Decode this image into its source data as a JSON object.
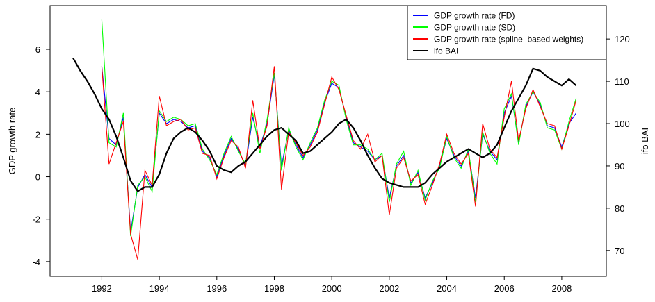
{
  "chart_data": {
    "type": "line",
    "ylabel": "GDP growth rate",
    "y2label": "ifo BAI",
    "x": [
      1991,
      1991.25,
      1991.5,
      1991.75,
      1992,
      1992.25,
      1992.5,
      1992.75,
      1993,
      1993.25,
      1993.5,
      1993.75,
      1994,
      1994.25,
      1994.5,
      1994.75,
      1995,
      1995.25,
      1995.5,
      1995.75,
      1996,
      1996.25,
      1996.5,
      1996.75,
      1997,
      1997.25,
      1997.5,
      1997.75,
      1998,
      1998.25,
      1998.5,
      1998.75,
      1999,
      1999.25,
      1999.5,
      1999.75,
      2000,
      2000.25,
      2000.5,
      2000.75,
      2001,
      2001.25,
      2001.5,
      2001.75,
      2002,
      2002.25,
      2002.5,
      2002.75,
      2003,
      2003.25,
      2003.5,
      2003.75,
      2004,
      2004.25,
      2004.5,
      2004.75,
      2005,
      2005.25,
      2005.5,
      2005.75,
      2006,
      2006.25,
      2006.5,
      2006.75,
      2007,
      2007.25,
      2007.5,
      2007.75,
      2008,
      2008.25,
      2008.5
    ],
    "xlim": [
      1990.2,
      2009.55
    ],
    "xticks": [
      1992,
      1994,
      1996,
      1998,
      2000,
      2002,
      2004,
      2006,
      2008
    ],
    "ylim": [
      -4.69,
      8.06
    ],
    "yticks": [
      -4,
      -2,
      0,
      2,
      4,
      6
    ],
    "y2lim": [
      63.9,
      127.9
    ],
    "y2ticks": [
      70,
      80,
      90,
      100,
      110,
      120
    ],
    "legend": "top-right",
    "series": [
      {
        "name": "GDP growth rate (FD)",
        "color": "#0000ff",
        "values": [
          null,
          null,
          null,
          null,
          5.2,
          1.8,
          1.5,
          2.8,
          -2.6,
          -0.5,
          0.1,
          -0.5,
          3.0,
          2.5,
          2.7,
          2.6,
          2.3,
          2.4,
          1.2,
          0.9,
          0.0,
          1.0,
          1.8,
          1.3,
          0.5,
          2.8,
          1.4,
          2.5,
          4.8,
          0.5,
          2.2,
          1.5,
          0.9,
          1.5,
          2.2,
          3.5,
          4.4,
          4.2,
          2.8,
          1.6,
          1.4,
          1.2,
          0.8,
          1.0,
          -1.0,
          0.5,
          1.0,
          -0.3,
          0.2,
          -1.0,
          -0.3,
          0.5,
          1.8,
          1.0,
          0.5,
          1.2,
          -1.0,
          2.0,
          1.2,
          0.8,
          3.0,
          3.8,
          1.6,
          3.3,
          4.0,
          3.4,
          2.4,
          2.3,
          1.4,
          2.5,
          3.0
        ]
      },
      {
        "name": "GDP growth rate (SD)",
        "color": "#00ff00",
        "values": [
          null,
          null,
          null,
          null,
          7.4,
          1.6,
          1.4,
          3.0,
          -2.8,
          -0.4,
          0.0,
          -0.7,
          3.1,
          2.6,
          2.8,
          2.7,
          2.4,
          2.5,
          1.3,
          0.8,
          0.1,
          1.1,
          1.9,
          1.2,
          0.6,
          3.0,
          1.1,
          2.7,
          4.9,
          0.3,
          2.3,
          1.4,
          0.8,
          1.6,
          2.3,
          3.6,
          4.5,
          4.3,
          2.7,
          1.5,
          1.5,
          1.3,
          0.8,
          1.1,
          -1.2,
          0.6,
          1.2,
          -0.4,
          0.3,
          -1.1,
          -0.2,
          0.4,
          1.9,
          0.9,
          0.4,
          1.3,
          -1.2,
          2.1,
          1.1,
          0.6,
          3.2,
          3.9,
          1.5,
          3.4,
          4.0,
          3.5,
          2.3,
          2.2,
          1.3,
          2.6,
          3.7
        ]
      },
      {
        "name": "GDP growth rate (spline–based weights)",
        "color": "#ff0000",
        "values": [
          null,
          null,
          null,
          null,
          5.2,
          0.6,
          1.6,
          2.6,
          -2.7,
          -3.9,
          0.3,
          -0.4,
          3.8,
          2.4,
          2.6,
          2.7,
          2.2,
          2.3,
          1.1,
          1.0,
          -0.1,
          0.9,
          1.7,
          1.4,
          0.4,
          3.6,
          1.3,
          2.4,
          5.2,
          -0.6,
          2.1,
          1.6,
          1.0,
          1.4,
          2.1,
          3.4,
          4.7,
          4.1,
          2.9,
          1.7,
          1.3,
          2.0,
          0.7,
          1.0,
          -1.8,
          0.4,
          0.9,
          -0.2,
          0.1,
          -1.3,
          -0.4,
          0.6,
          2.0,
          1.1,
          0.6,
          1.1,
          -1.4,
          2.5,
          1.3,
          0.9,
          2.8,
          4.5,
          1.7,
          3.2,
          4.1,
          3.3,
          2.5,
          2.4,
          1.3,
          2.4,
          3.6
        ]
      },
      {
        "name": "ifo BAI",
        "color": "#000000",
        "axis": "y2",
        "values": [
          115.5,
          112.5,
          110,
          107,
          103.5,
          101,
          97,
          92,
          86.5,
          84,
          85,
          85,
          88,
          93,
          96.5,
          98,
          99,
          98,
          96,
          93.5,
          90,
          89,
          88.5,
          90,
          91,
          93,
          95,
          97,
          98.5,
          99,
          97.5,
          96,
          93,
          93.5,
          95,
          96.5,
          98,
          100,
          101,
          99,
          96,
          92.5,
          89.5,
          87,
          86,
          85.5,
          85,
          85,
          85,
          86,
          88,
          89.5,
          91,
          92,
          93,
          94,
          93,
          92,
          93,
          95,
          99,
          103,
          106,
          109,
          113,
          112.5,
          111,
          110,
          109,
          110.5,
          109
        ]
      }
    ]
  }
}
